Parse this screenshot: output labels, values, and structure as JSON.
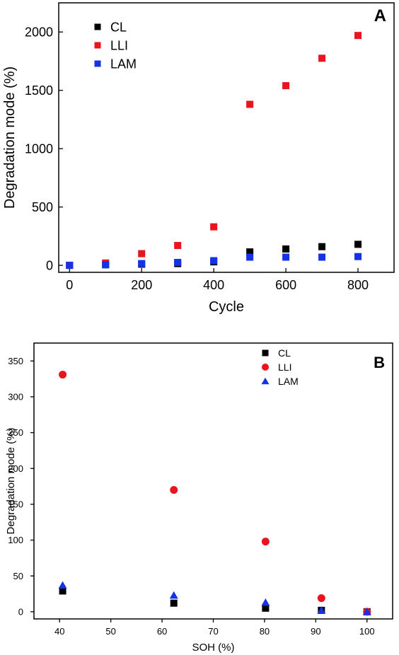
{
  "chart_data": [
    {
      "type": "scatter",
      "panel_label": "A",
      "title": "",
      "xlabel": "Cycle",
      "ylabel": "Degradation mode (%)",
      "xlim": [
        -30,
        900
      ],
      "ylim": [
        -60,
        2250
      ],
      "xticks": [
        0,
        200,
        400,
        600,
        800
      ],
      "yticks": [
        0,
        500,
        1000,
        1500,
        2000
      ],
      "grid": false,
      "legend_position": "top-left",
      "series": [
        {
          "name": "CL",
          "marker": "square",
          "color": "#000000",
          "x": [
            0,
            100,
            200,
            300,
            400,
            500,
            600,
            700,
            800
          ],
          "y": [
            0,
            5,
            10,
            15,
            30,
            115,
            140,
            160,
            180
          ]
        },
        {
          "name": "LLI",
          "marker": "square",
          "color": "#e8141e",
          "x": [
            0,
            100,
            200,
            300,
            400,
            500,
            600,
            700,
            800
          ],
          "y": [
            0,
            20,
            100,
            170,
            330,
            1380,
            1540,
            1775,
            1970
          ]
        },
        {
          "name": "LAM",
          "marker": "square",
          "color": "#1432e6",
          "x": [
            0,
            100,
            200,
            300,
            400,
            500,
            600,
            700,
            800
          ],
          "y": [
            0,
            5,
            15,
            25,
            40,
            70,
            70,
            70,
            75
          ]
        }
      ]
    },
    {
      "type": "scatter",
      "panel_label": "B",
      "title": "",
      "xlabel": "SOH (%)",
      "ylabel": "Degradation mode (%)",
      "xlim": [
        35,
        105
      ],
      "ylim": [
        -10,
        375
      ],
      "xticks": [
        40,
        50,
        60,
        70,
        80,
        90,
        100
      ],
      "yticks": [
        0,
        50,
        100,
        150,
        200,
        250,
        300,
        350
      ],
      "grid": false,
      "legend_position": "top-right",
      "series": [
        {
          "name": "CL",
          "marker": "square",
          "color": "#000000",
          "x": [
            40.6,
            62.3,
            80.2,
            91.1,
            100
          ],
          "y": [
            29,
            12,
            5,
            2,
            0
          ]
        },
        {
          "name": "LLI",
          "marker": "circle",
          "color": "#e8141e",
          "x": [
            40.6,
            62.3,
            80.2,
            91.1,
            100
          ],
          "y": [
            331,
            170,
            98,
            19,
            0
          ]
        },
        {
          "name": "LAM",
          "marker": "triangle",
          "color": "#1432e6",
          "x": [
            40.6,
            62.3,
            80.2,
            91.1,
            100
          ],
          "y": [
            37,
            23,
            13,
            2,
            0
          ]
        }
      ]
    }
  ]
}
